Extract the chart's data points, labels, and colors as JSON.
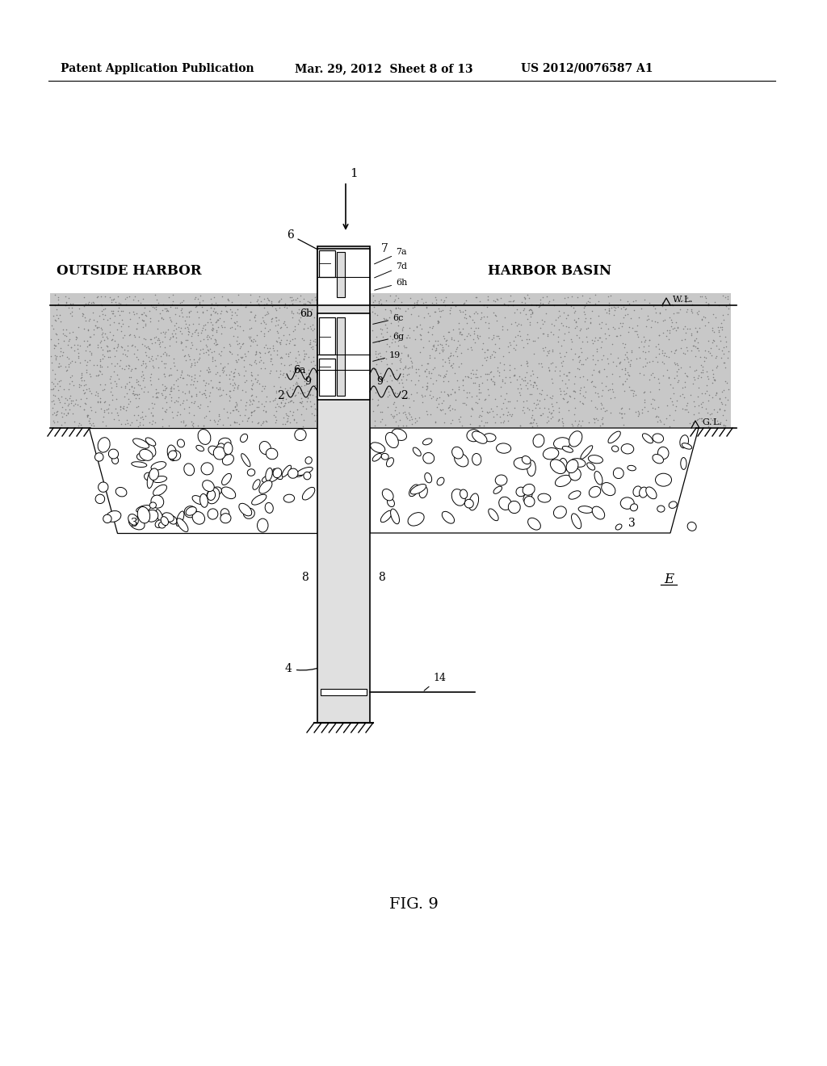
{
  "bg_color": "#ffffff",
  "header_left": "Patent Application Publication",
  "header_mid": "Mar. 29, 2012  Sheet 8 of 13",
  "header_right": "US 2012/0076587 A1",
  "fig_label": "FIG. 9",
  "outside_harbor": "OUTSIDE HARBOR",
  "harbor_basin": "HARBOR BASIN",
  "label_E": "E",
  "page_width": 10.24,
  "page_height": 13.2
}
